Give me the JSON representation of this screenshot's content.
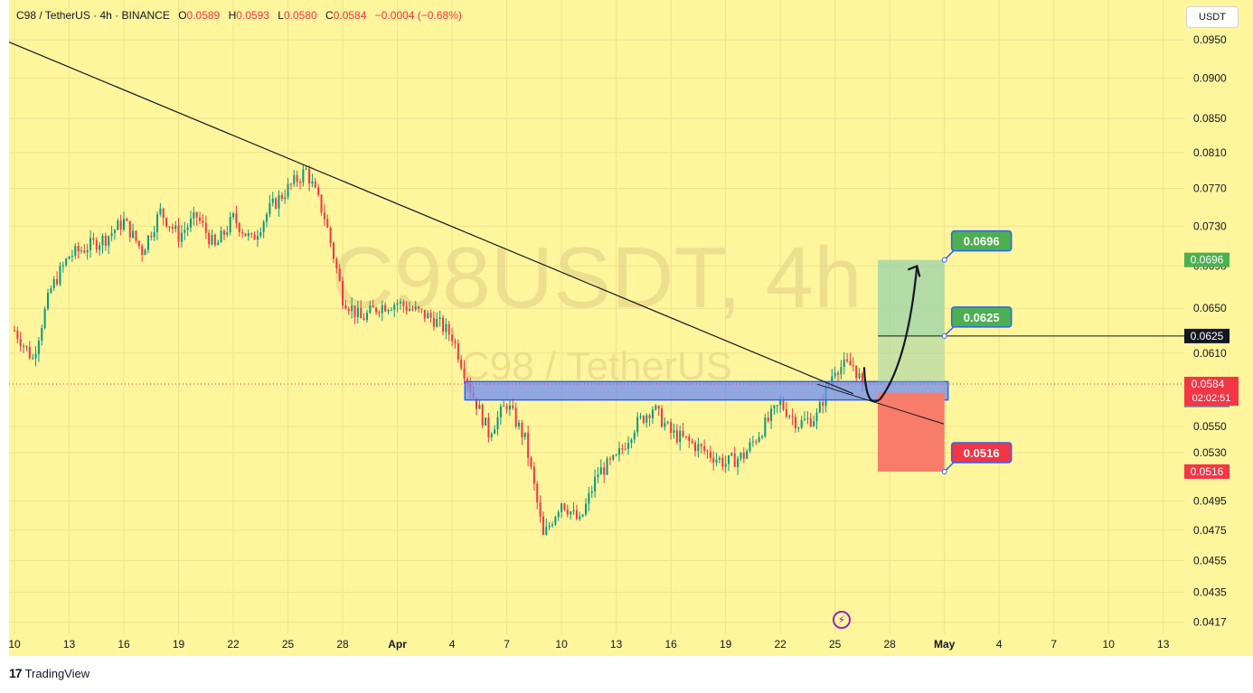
{
  "header": {
    "symbol": "C98 / TetherUS · 4h · BINANCE",
    "open_label": "O",
    "open": "0.0589",
    "high_label": "H",
    "high": "0.0593",
    "low_label": "L",
    "low": "0.0580",
    "close_label": "C",
    "close": "0.0584",
    "change": "−0.0004 (−0.68%)"
  },
  "currency_button": "USDT",
  "footer": {
    "brand": "TradingView",
    "glyph": "17"
  },
  "watermark": {
    "main": "C98USDT, 4h",
    "sub": "C98 / TetherUS"
  },
  "colors": {
    "background": "#fff59d",
    "up": "#089981",
    "down": "#f23645",
    "zone": "#6b8cf5",
    "target": "#4caf50",
    "stop": "#f77c6a"
  },
  "chart_data": {
    "type": "candlestick",
    "y_scale": "log",
    "ylim": [
      0.041,
      0.1005
    ],
    "price_ticks": [
      "0.0950",
      "0.0900",
      "0.0850",
      "0.0810",
      "0.0770",
      "0.0730",
      "0.0690",
      "0.0650",
      "0.0610",
      "0.0550",
      "0.0530",
      "0.0495",
      "0.0475",
      "0.0455",
      "0.0435",
      "0.0417"
    ],
    "x_ticks": [
      "10",
      "13",
      "16",
      "19",
      "22",
      "25",
      "28",
      "Apr",
      "4",
      "7",
      "10",
      "13",
      "16",
      "19",
      "22",
      "25",
      "28",
      "May",
      "4",
      "7",
      "10",
      "13"
    ],
    "current_price": {
      "label": "0.0584",
      "countdown": "02:02:51",
      "value": 0.0584
    },
    "price_markers": [
      {
        "label": "0.0696",
        "value": 0.0696
      },
      {
        "label": "0.0625",
        "value": 0.0625
      },
      {
        "label": "0.0571",
        "value": 0.0571
      },
      {
        "label": "0.0516",
        "value": 0.0516
      }
    ],
    "callouts": [
      {
        "label": "0.0696",
        "value": 0.0696
      },
      {
        "label": "0.0625",
        "value": 0.0625
      },
      {
        "label": "0.0516",
        "value": 0.0516
      }
    ],
    "support_zone": {
      "low": 0.0571,
      "high": 0.0586
    },
    "entry": 0.0625,
    "target": 0.0696,
    "stop": 0.0516,
    "trendline": [
      {
        "date": "Mar 10",
        "price": 0.0947
      },
      {
        "date": "Apr 24",
        "price": 0.0576
      }
    ],
    "anchors": [
      {
        "date": "Mar 10",
        "close": 0.063
      },
      {
        "date": "Mar 11",
        "close": 0.0605
      },
      {
        "date": "Mar 12",
        "close": 0.0668
      },
      {
        "date": "Mar 13",
        "close": 0.07
      },
      {
        "date": "Mar 15",
        "close": 0.0718
      },
      {
        "date": "Mar 16",
        "close": 0.0735
      },
      {
        "date": "Mar 17",
        "close": 0.0705
      },
      {
        "date": "Mar 18",
        "close": 0.0745
      },
      {
        "date": "Mar 19",
        "close": 0.072
      },
      {
        "date": "Mar 20",
        "close": 0.074
      },
      {
        "date": "Mar 21",
        "close": 0.0708
      },
      {
        "date": "Mar 22",
        "close": 0.0738
      },
      {
        "date": "Mar 23",
        "close": 0.0715
      },
      {
        "date": "Mar 24",
        "close": 0.0748
      },
      {
        "date": "Mar 25",
        "close": 0.077
      },
      {
        "date": "Mar 26",
        "close": 0.079
      },
      {
        "date": "Mar 27",
        "close": 0.074
      },
      {
        "date": "Mar 28",
        "close": 0.066
      },
      {
        "date": "Mar 29",
        "close": 0.064
      },
      {
        "date": "Mar 30",
        "close": 0.0652
      },
      {
        "date": "Mar 31",
        "close": 0.0655
      },
      {
        "date": "Apr 1",
        "close": 0.064
      },
      {
        "date": "Apr 2",
        "close": 0.0625
      },
      {
        "date": "Apr 3",
        "close": 0.058
      },
      {
        "date": "Apr 4",
        "close": 0.0545
      },
      {
        "date": "Apr 5",
        "close": 0.0568
      },
      {
        "date": "Apr 6",
        "close": 0.054
      },
      {
        "date": "Apr 7",
        "close": 0.047
      },
      {
        "date": "Apr 8",
        "close": 0.0495
      },
      {
        "date": "Apr 9",
        "close": 0.048
      },
      {
        "date": "Apr 10",
        "close": 0.0515
      },
      {
        "date": "Apr 11",
        "close": 0.0525
      },
      {
        "date": "Apr 12",
        "close": 0.055
      },
      {
        "date": "Apr 13",
        "close": 0.0565
      },
      {
        "date": "Apr 14",
        "close": 0.0545
      },
      {
        "date": "Apr 15",
        "close": 0.0538
      },
      {
        "date": "Apr 16",
        "close": 0.053
      },
      {
        "date": "Apr 17",
        "close": 0.0522
      },
      {
        "date": "Apr 18",
        "close": 0.0528
      },
      {
        "date": "Apr 19",
        "close": 0.0548
      },
      {
        "date": "Apr 20",
        "close": 0.0568
      },
      {
        "date": "Apr 21",
        "close": 0.0552
      },
      {
        "date": "Apr 22",
        "close": 0.0558
      },
      {
        "date": "Apr 23",
        "close": 0.0598
      },
      {
        "date": "Apr 24",
        "close": 0.06
      },
      {
        "date": "Apr 24 12:00",
        "close": 0.0584
      }
    ]
  }
}
